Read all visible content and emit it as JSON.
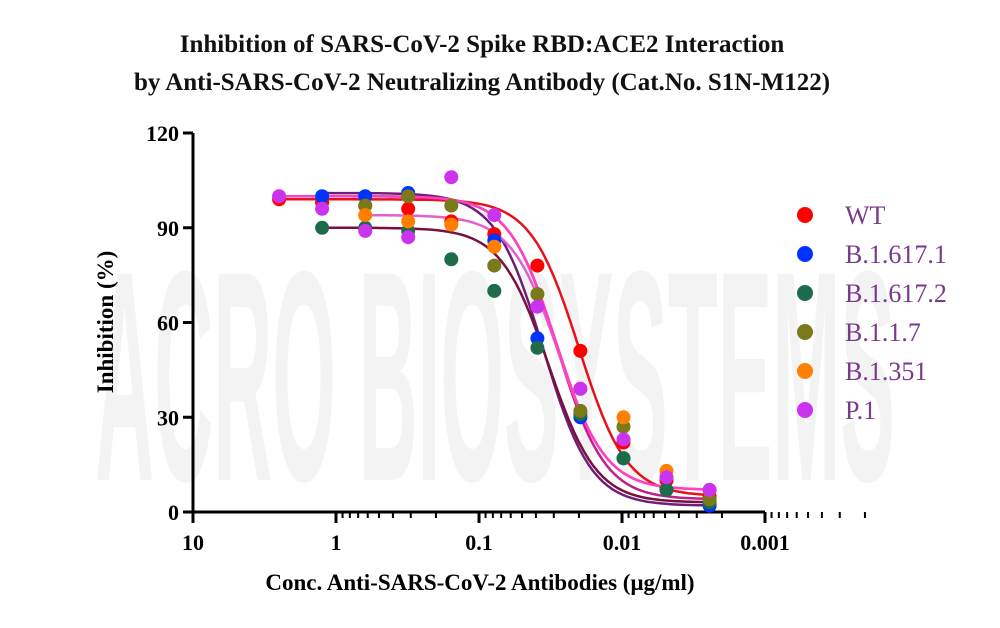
{
  "chart_data": {
    "type": "scatter",
    "title_lines": [
      "Inhibition of SARS-CoV-2 Spike RBD:ACE2 Interaction",
      "by Anti-SARS-CoV-2 Neutralizing Antibody (Cat.No. S1N-M122)"
    ],
    "xlabel": "Conc. Anti-SARS-CoV-2 Antibodies (μg/ml)",
    "ylabel": "Inhibition (%)",
    "x_scale": "log",
    "x_reversed": true,
    "xlim": [
      10,
      0.001
    ],
    "ylim": [
      0,
      120
    ],
    "x_ticks": [
      10,
      1,
      0.1,
      0.01,
      0.001
    ],
    "x_tick_labels": [
      "10",
      "1",
      "0.1",
      "0.01",
      "0.001"
    ],
    "y_ticks": [
      0,
      30,
      60,
      90,
      120
    ],
    "y_tick_labels": [
      "0",
      "30",
      "60",
      "90",
      "120"
    ],
    "grid": false,
    "legend_position": "right",
    "watermark": "ACRO BIOSYSTEMS",
    "x": [
      2.5,
      1.25,
      0.625,
      0.3125,
      0.15625,
      0.078125,
      0.039063,
      0.019531,
      0.009766,
      0.004883,
      0.002441
    ],
    "series": [
      {
        "name": "WT",
        "color": "#ff0000",
        "curve_color": "#e8101a",
        "values": [
          99,
          98,
          97,
          96,
          92,
          88,
          78,
          51,
          22,
          10,
          5
        ]
      },
      {
        "name": "B.1.617.1",
        "color": "#0033ff",
        "curve_color": "#6e1f7a",
        "values": [
          null,
          100,
          100,
          101,
          null,
          86,
          55,
          30,
          17,
          7,
          2
        ]
      },
      {
        "name": "B.1.617.2",
        "color": "#1e6b4b",
        "curve_color": "#7a1040",
        "values": [
          null,
          90,
          90,
          89,
          80,
          70,
          52,
          31,
          17,
          7,
          3
        ]
      },
      {
        "name": "B.1.1.7",
        "color": "#7a7a1a",
        "curve_color": "#c0208a",
        "values": [
          null,
          null,
          97,
          100,
          97,
          78,
          69,
          32,
          27,
          null,
          4
        ]
      },
      {
        "name": "B.1.351",
        "color": "#ff8000",
        "curve_color": "#e060d0",
        "values": [
          null,
          null,
          94,
          92,
          91,
          84,
          null,
          39,
          30,
          13,
          7
        ]
      },
      {
        "name": "P.1",
        "color": "#cc33ee",
        "curve_color": "#ff40c0",
        "values": [
          100,
          96,
          89,
          87,
          106,
          94,
          65,
          39,
          23,
          11,
          7
        ]
      }
    ]
  }
}
